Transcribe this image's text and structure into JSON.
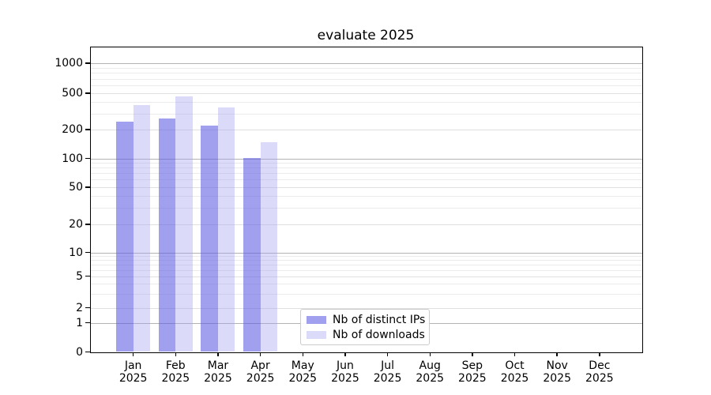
{
  "title": "evaluate 2025",
  "legend": {
    "items": [
      {
        "label": "Nb of distinct IPs"
      },
      {
        "label": "Nb of downloads"
      }
    ]
  },
  "chart_data": {
    "type": "bar",
    "title": "evaluate 2025",
    "categories": [
      "Jan 2025",
      "Feb 2025",
      "Mar 2025",
      "Apr 2025",
      "May 2025",
      "Jun 2025",
      "Jul 2025",
      "Aug 2025",
      "Sep 2025",
      "Oct 2025",
      "Nov 2025",
      "Dec 2025"
    ],
    "series": [
      {
        "name": "Nb of distinct IPs",
        "color": "#a2a2ee",
        "fill": "rgba(92,92,226,0.58)",
        "values": [
          242,
          264,
          221,
          102,
          null,
          null,
          null,
          null,
          null,
          null,
          null,
          null
        ]
      },
      {
        "name": "Nb of downloads",
        "color": "#dbdbf8",
        "fill": "rgba(160,160,240,0.38)",
        "values": [
          370,
          465,
          350,
          148,
          null,
          null,
          null,
          null,
          null,
          null,
          null,
          null
        ]
      }
    ],
    "yscale": "symlog",
    "ytick_values": [
      0,
      1,
      2,
      5,
      10,
      20,
      50,
      100,
      200,
      500,
      1000
    ],
    "ytick_labels": [
      "0",
      "1",
      "2",
      "5",
      "10",
      "20",
      "50",
      "100",
      "200",
      "500",
      "1000"
    ],
    "ylim": [
      0,
      1500
    ],
    "xlabel": "",
    "ylabel": "",
    "grid": "horizontal, major and minor",
    "legend_position": "inside lower-center-left",
    "background": "#ffffff"
  }
}
